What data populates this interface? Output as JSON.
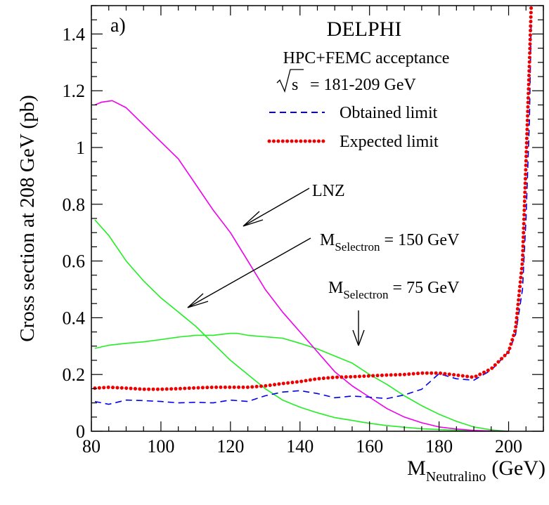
{
  "panel_label": "a)",
  "experiment": "DELPHI",
  "acceptance": "HPC+FEMC acceptance",
  "sqrt_s": {
    "symbol": "s",
    "value": "= 181-209 GeV"
  },
  "ylabel": "Cross section at 208 GeV (pb)",
  "xlabel": {
    "main": "M",
    "sub": "Neutralino",
    "unit": "(GeV)"
  },
  "annotations": {
    "lnz": "LNZ",
    "sel150": {
      "main": "M",
      "sub": "Selectron",
      "value": "= 150 GeV"
    },
    "sel75": {
      "main": "M",
      "sub": "Selectron",
      "value": "= 75 GeV"
    }
  },
  "colors": {
    "obtained": "#0000ee",
    "expected": "#ee0000",
    "lnz": "#ee00ee",
    "selectron": "#22ee22"
  },
  "chart_data": {
    "type": "line",
    "xlim": [
      80,
      210
    ],
    "ylim": [
      0,
      1.5
    ],
    "x_ticks": [
      80,
      100,
      120,
      140,
      160,
      180,
      200
    ],
    "y_ticks": [
      0,
      0.2,
      0.4,
      0.6,
      0.8,
      1,
      1.2,
      1.4
    ],
    "x_tick_labels": [
      "80",
      "100",
      "120",
      "140",
      "160",
      "180",
      "200"
    ],
    "y_tick_labels": [
      "0",
      "0.2",
      "0.4",
      "0.6",
      "0.8",
      "1",
      "1.2",
      "1.4"
    ],
    "series": [
      {
        "name": "Obtained limit",
        "style": "dashed",
        "x": [
          81,
          85,
          90,
          95,
          100,
          105,
          110,
          115,
          120,
          125,
          130,
          135,
          140,
          145,
          150,
          155,
          160,
          165,
          170,
          175,
          180,
          185,
          190,
          195,
          200,
          202,
          204,
          205,
          206,
          206.5
        ],
        "y": [
          0.105,
          0.095,
          0.11,
          0.108,
          0.105,
          0.1,
          0.102,
          0.1,
          0.11,
          0.105,
          0.125,
          0.138,
          0.143,
          0.133,
          0.118,
          0.124,
          0.12,
          0.115,
          0.128,
          0.148,
          0.203,
          0.185,
          0.18,
          0.215,
          0.28,
          0.34,
          0.5,
          0.75,
          1.1,
          1.45
        ]
      },
      {
        "name": "Expected limit",
        "style": "dotted",
        "x": [
          81,
          85,
          90,
          95,
          100,
          105,
          110,
          115,
          120,
          125,
          130,
          135,
          140,
          145,
          150,
          155,
          160,
          165,
          170,
          175,
          180,
          185,
          190,
          195,
          200,
          202,
          204,
          205,
          206,
          206.5
        ],
        "y": [
          0.152,
          0.155,
          0.152,
          0.148,
          0.148,
          0.15,
          0.153,
          0.155,
          0.155,
          0.155,
          0.16,
          0.168,
          0.175,
          0.185,
          0.19,
          0.192,
          0.195,
          0.198,
          0.2,
          0.205,
          0.205,
          0.198,
          0.19,
          0.22,
          0.28,
          0.36,
          0.6,
          0.95,
          1.3,
          1.5
        ]
      },
      {
        "name": "LNZ",
        "style": "solid",
        "x": [
          81,
          83,
          86,
          90,
          95,
          100,
          105,
          110,
          115,
          120,
          125,
          130,
          135,
          140,
          145,
          150,
          155,
          160,
          165,
          170,
          175,
          180,
          185,
          190,
          195,
          200
        ],
        "y": [
          1.15,
          1.16,
          1.165,
          1.14,
          1.08,
          1.02,
          0.96,
          0.87,
          0.78,
          0.7,
          0.6,
          0.5,
          0.42,
          0.35,
          0.28,
          0.21,
          0.16,
          0.12,
          0.08,
          0.05,
          0.03,
          0.015,
          0.008,
          0.003,
          0.001,
          0
        ]
      },
      {
        "name": "M Selectron = 150 GeV",
        "style": "solid",
        "x": [
          81,
          85,
          90,
          95,
          100,
          105,
          110,
          115,
          120,
          125,
          130,
          135,
          140,
          145,
          150,
          155,
          160,
          165,
          170,
          175,
          180,
          185,
          190,
          195,
          200
        ],
        "y": [
          0.745,
          0.69,
          0.6,
          0.53,
          0.47,
          0.42,
          0.37,
          0.31,
          0.25,
          0.2,
          0.15,
          0.11,
          0.085,
          0.065,
          0.048,
          0.038,
          0.028,
          0.02,
          0.014,
          0.009,
          0.006,
          0.004,
          0.002,
          0.001,
          0
        ]
      },
      {
        "name": "M Selectron = 75 GeV",
        "style": "solid",
        "x": [
          81,
          85,
          90,
          95,
          100,
          105,
          110,
          115,
          120,
          122,
          125,
          130,
          135,
          140,
          145,
          150,
          155,
          160,
          165,
          170,
          175,
          180,
          185,
          190,
          195,
          200
        ],
        "y": [
          0.292,
          0.303,
          0.31,
          0.315,
          0.323,
          0.332,
          0.338,
          0.338,
          0.345,
          0.345,
          0.338,
          0.333,
          0.328,
          0.31,
          0.29,
          0.265,
          0.24,
          0.2,
          0.165,
          0.125,
          0.09,
          0.06,
          0.035,
          0.015,
          0.005,
          0
        ]
      }
    ]
  }
}
